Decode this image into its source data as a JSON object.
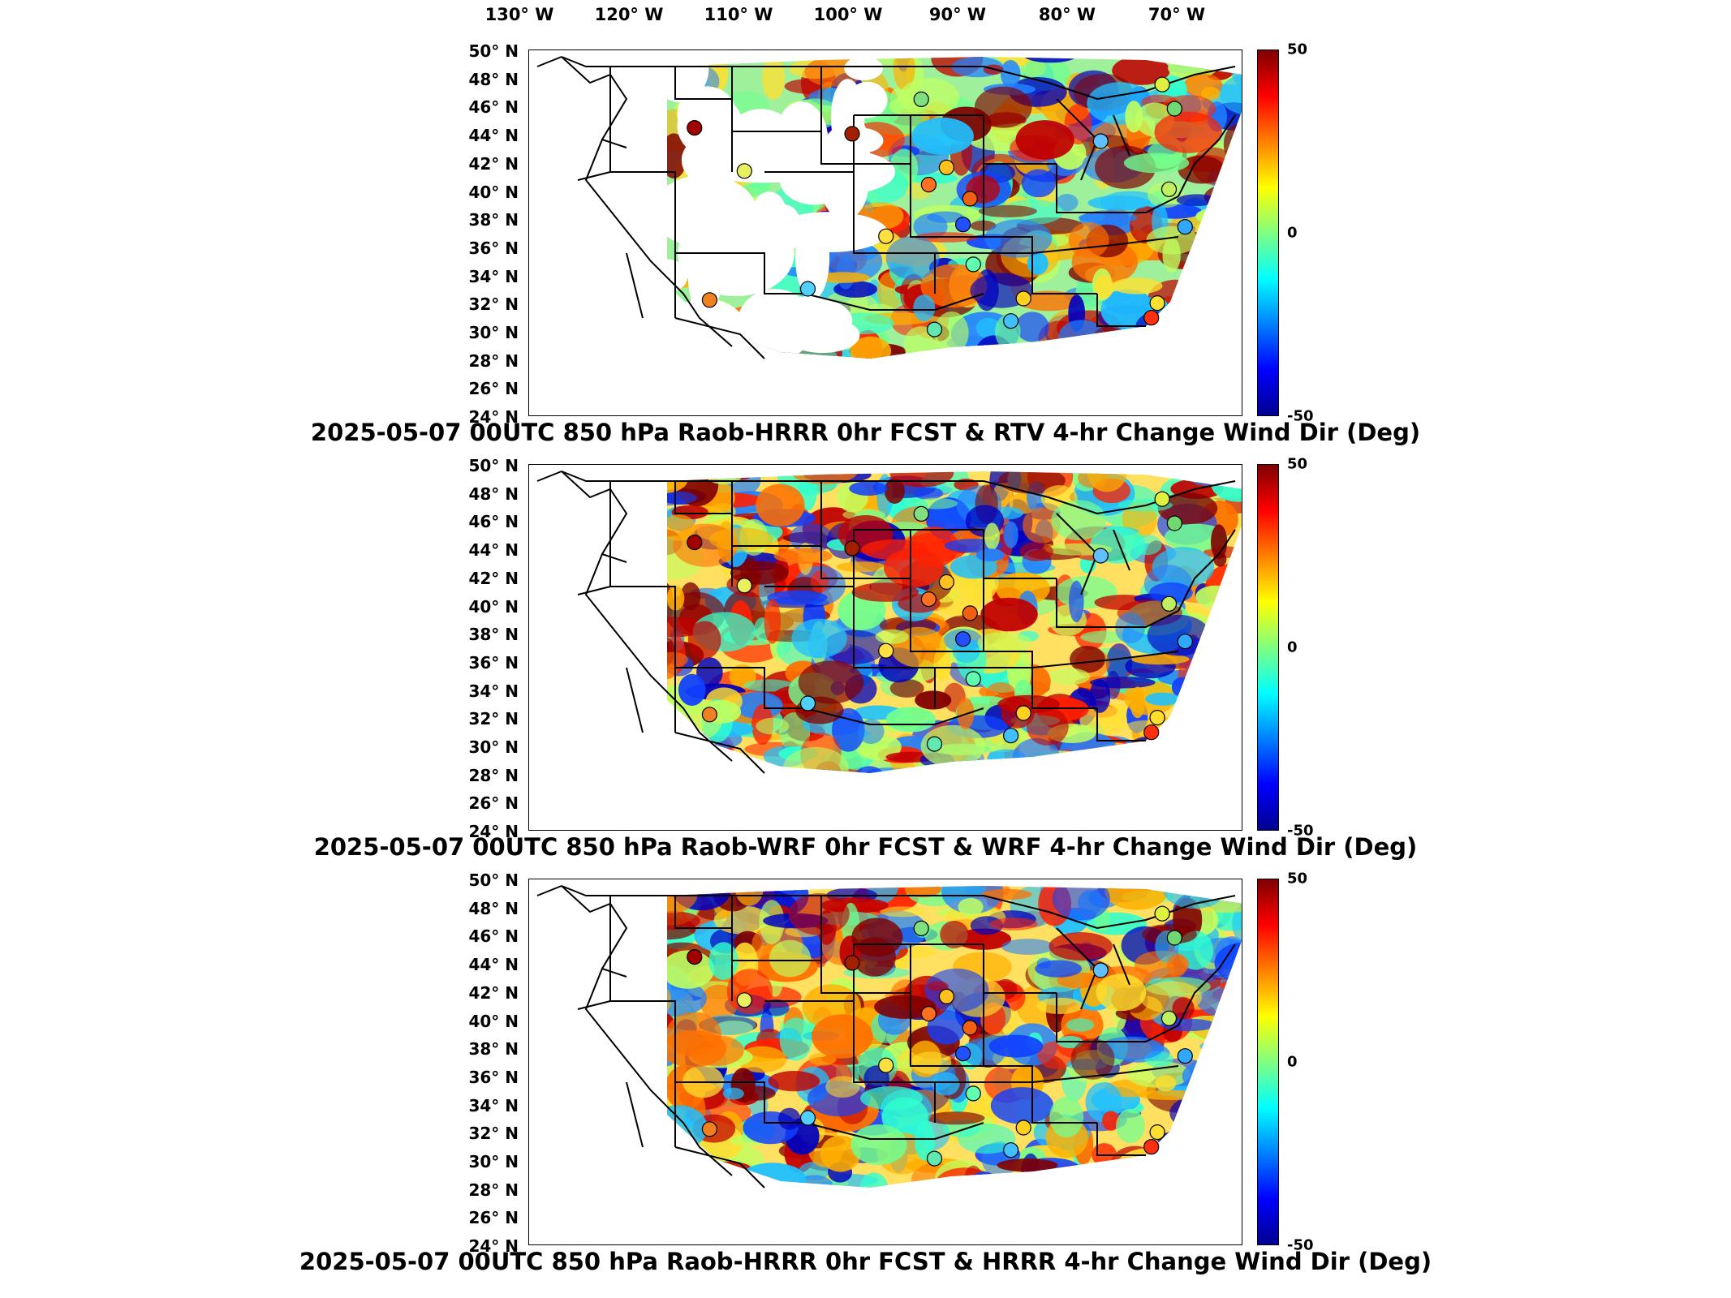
{
  "longitude_labels": [
    "130° W",
    "120° W",
    "110° W",
    "100° W",
    "90° W",
    "80° W",
    "70° W"
  ],
  "latitude_labels": [
    "50° N",
    "48° N",
    "46° N",
    "44° N",
    "42° N",
    "40° N",
    "38° N",
    "36° N",
    "34° N",
    "32° N",
    "30° N",
    "28° N",
    "26° N",
    "24° N"
  ],
  "colorbar": {
    "max_label": "50",
    "mid_label": "0",
    "min_label": "-50",
    "colormap": "jet",
    "range": [
      -50,
      50
    ]
  },
  "panels": [
    {
      "title": "2025-05-07 00UTC 850 hPa Raob-HRRR 0hr FCST & RTV 4-hr Change Wind Dir (Deg)",
      "data_coverage": "partial"
    },
    {
      "title": "2025-05-07 00UTC 850 hPa Raob-WRF 0hr FCST & WRF 4-hr Change Wind Dir (Deg)",
      "data_coverage": "full"
    },
    {
      "title": "2025-05-07 00UTC 850 hPa Raob-HRRR 0hr FCST & HRRR 4-hr Change Wind Dir (Deg)",
      "data_coverage": "full"
    }
  ],
  "raob_station_colors": [
    "#a00000",
    "#e8f060",
    "#70d870",
    "#f06010",
    "#60c0ff",
    "#30a8ff",
    "#ffd020",
    "#2050ff",
    "#60e8b0",
    "#ff3010",
    "#ffe040",
    "#40c0ff",
    "#ff7020",
    "#80e080",
    "#50d0ff",
    "#a02000",
    "#ffe030",
    "#e0f040",
    "#60ffb0",
    "#f08020",
    "#c0f060",
    "#ffc020"
  ],
  "colors": {
    "colormap_max": "#7f0000",
    "colormap_mid": "#80ff80",
    "colormap_min": "#00008f",
    "state_lines": "#000000"
  }
}
